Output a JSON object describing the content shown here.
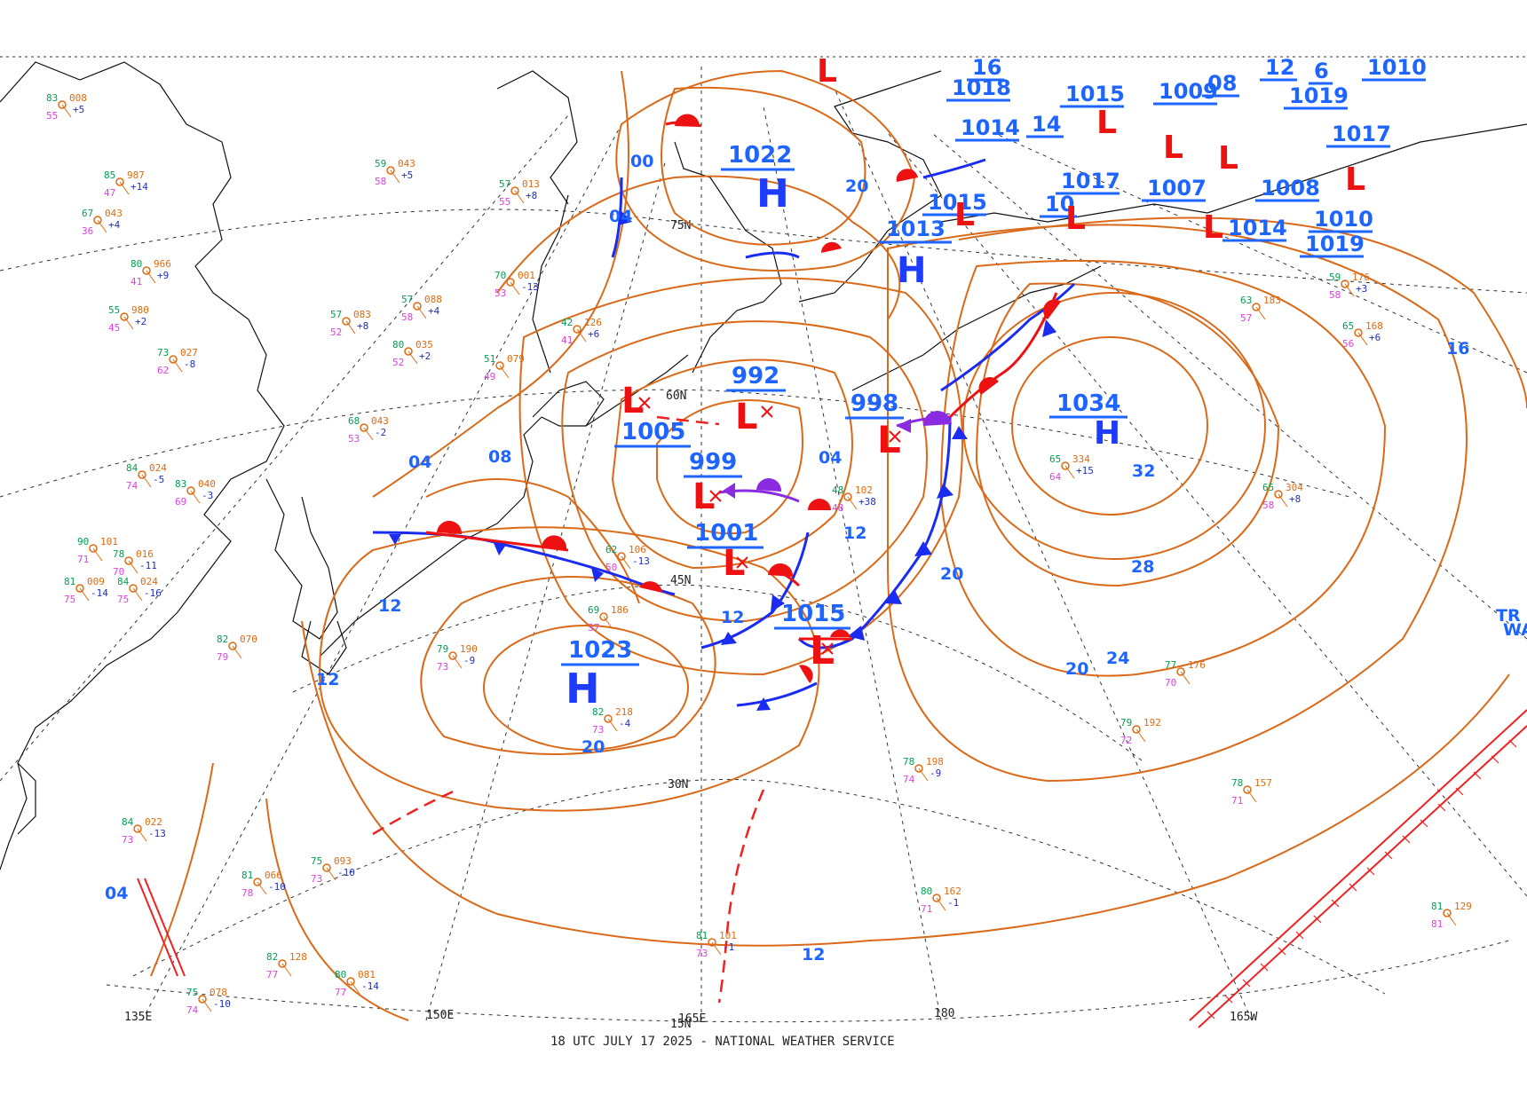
{
  "footer": "18 UTC JULY 17 2025 - NATIONAL WEATHER SERVICE",
  "colors": {
    "isobar": "#d96a1a",
    "cold_front": "#1a2cf0",
    "warm_front": "#ee1111",
    "occluded_front": "#8a2be2",
    "pressure_label": "#1e64ff",
    "high_letter": "#1e3cff",
    "low_letter": "#ee1111",
    "trough": "#ee2222"
  },
  "grid_labels": {
    "lat_75n": "75N",
    "lat_60n": "60N",
    "lat_45n": "45N",
    "lat_30n": "30N",
    "lat_15n": "15N",
    "lon_135e": "135E",
    "lon_150e": "150E",
    "lon_165e": "165E",
    "lon_180": "180",
    "lon_165w": "165W"
  },
  "highs": [
    {
      "value": "1022",
      "letter": "H"
    },
    {
      "value": "1023",
      "letter": "H"
    },
    {
      "value": "1034",
      "letter": "H"
    },
    {
      "value": "1013",
      "letter": "H"
    }
  ],
  "lows": [
    {
      "value": "992",
      "letter": "L"
    },
    {
      "value": "1005",
      "letter": "L"
    },
    {
      "value": "999",
      "letter": "L"
    },
    {
      "value": "998",
      "letter": "L"
    },
    {
      "value": "1001",
      "letter": "L"
    },
    {
      "value": "1015",
      "letter": "L"
    }
  ],
  "top_labels": [
    "1018",
    "1014",
    "1015",
    "1009",
    "1019",
    "1010",
    "1017",
    "1017",
    "1007",
    "1008",
    "1010",
    "1015",
    "1019",
    "08",
    "14",
    "16",
    "12",
    "1014",
    "10",
    "6"
  ],
  "isobar_labels": [
    "00",
    "04",
    "20",
    "04",
    "08",
    "12",
    "12",
    "12",
    "04",
    "12",
    "20",
    "24",
    "28",
    "32",
    "16",
    "20",
    "04",
    "12",
    "20"
  ],
  "edge_text": {
    "line1": "TR",
    "line2": "WA"
  },
  "station_samples": [
    {
      "t": "83",
      "p": "008",
      "c": "+5",
      "d": "55"
    },
    {
      "t": "85",
      "p": "987",
      "c": "+14",
      "d": "47"
    },
    {
      "t": "67",
      "p": "043",
      "c": "+4",
      "d": "36"
    },
    {
      "t": "59",
      "p": "043",
      "c": "+5",
      "d": "58"
    },
    {
      "t": "57",
      "p": "013",
      "c": "+8",
      "d": "55"
    },
    {
      "t": "70",
      "p": "001",
      "c": "-13",
      "d": "53"
    },
    {
      "t": "57",
      "p": "083",
      "c": "+8",
      "d": "52"
    },
    {
      "t": "42",
      "p": "126",
      "c": "+6",
      "d": "41"
    },
    {
      "t": "68",
      "p": "043",
      "c": "-2",
      "d": "53"
    },
    {
      "t": "78",
      "p": "016",
      "c": "-11",
      "d": "70"
    },
    {
      "t": "84",
      "p": "024",
      "c": "-5",
      "d": "74"
    },
    {
      "t": "62",
      "p": "106",
      "c": "-13",
      "d": "50"
    },
    {
      "t": "69",
      "p": "186",
      "c": "",
      "d": "57"
    },
    {
      "t": "79",
      "p": "190",
      "c": "-9",
      "d": "73"
    },
    {
      "t": "82",
      "p": "070",
      "c": "",
      "d": "79"
    },
    {
      "t": "82",
      "p": "218",
      "c": "-4",
      "d": "73"
    },
    {
      "t": "65",
      "p": "334",
      "c": "+15",
      "d": "64"
    },
    {
      "t": "65",
      "p": "304",
      "c": "+8",
      "d": "58"
    },
    {
      "t": "77",
      "p": "176",
      "c": "",
      "d": "70"
    },
    {
      "t": "79",
      "p": "192",
      "c": "",
      "d": "72"
    },
    {
      "t": "78",
      "p": "198",
      "c": "-9",
      "d": "74"
    },
    {
      "t": "80",
      "p": "162",
      "c": "-1",
      "d": "71"
    },
    {
      "t": "78",
      "p": "157",
      "c": "",
      "d": "71"
    },
    {
      "t": "81",
      "p": "101",
      "c": "-1",
      "d": "73"
    },
    {
      "t": "75",
      "p": "093",
      "c": "-10",
      "d": "73"
    },
    {
      "t": "81",
      "p": "066",
      "c": "-10",
      "d": "78"
    },
    {
      "t": "82",
      "p": "128",
      "c": "",
      "d": "77"
    },
    {
      "t": "80",
      "p": "081",
      "c": "-14",
      "d": "77"
    },
    {
      "t": "75",
      "p": "078",
      "c": "-10",
      "d": "74"
    },
    {
      "t": "84",
      "p": "022",
      "c": "-13",
      "d": "73"
    },
    {
      "t": "81",
      "p": "129",
      "c": "",
      "d": "81"
    },
    {
      "t": "59",
      "p": "176",
      "c": "+3",
      "d": "58"
    },
    {
      "t": "65",
      "p": "168",
      "c": "+6",
      "d": "56"
    },
    {
      "t": "63",
      "p": "183",
      "c": "",
      "d": "57"
    },
    {
      "t": "48",
      "p": "102",
      "c": "+38",
      "d": "48"
    },
    {
      "t": "51",
      "p": "079",
      "c": "",
      "d": "49"
    },
    {
      "t": "80",
      "p": "035",
      "c": "+2",
      "d": "52"
    },
    {
      "t": "57",
      "p": "088",
      "c": "+4",
      "d": "58"
    },
    {
      "t": "55",
      "p": "980",
      "c": "+2",
      "d": "45"
    },
    {
      "t": "80",
      "p": "966",
      "c": "+9",
      "d": "41"
    },
    {
      "t": "73",
      "p": "027",
      "c": "-8",
      "d": "62"
    },
    {
      "t": "83",
      "p": "040",
      "c": "-3",
      "d": "69"
    },
    {
      "t": "90",
      "p": "101",
      "c": "",
      "d": "71"
    },
    {
      "t": "84",
      "p": "024",
      "c": "-16",
      "d": "75"
    },
    {
      "t": "81",
      "p": "009",
      "c": "-14",
      "d": "75"
    }
  ]
}
